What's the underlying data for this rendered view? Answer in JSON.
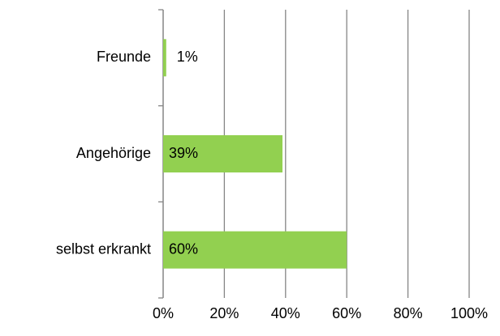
{
  "chart_data": {
    "type": "hbar",
    "categories": [
      "Freunde",
      "Angehörige",
      "selbst erkrankt"
    ],
    "values": [
      1,
      39,
      60
    ],
    "value_labels": [
      "1%",
      "39%",
      "60%"
    ],
    "color": "#92d050",
    "xlim": [
      0,
      100
    ],
    "xticks": [
      {
        "value": 0,
        "label": "0%"
      },
      {
        "value": 20,
        "label": "20%"
      },
      {
        "value": 40,
        "label": "40%"
      },
      {
        "value": 60,
        "label": "60%"
      },
      {
        "value": 80,
        "label": "80%"
      },
      {
        "value": 100,
        "label": "100%"
      }
    ],
    "grid": true
  }
}
